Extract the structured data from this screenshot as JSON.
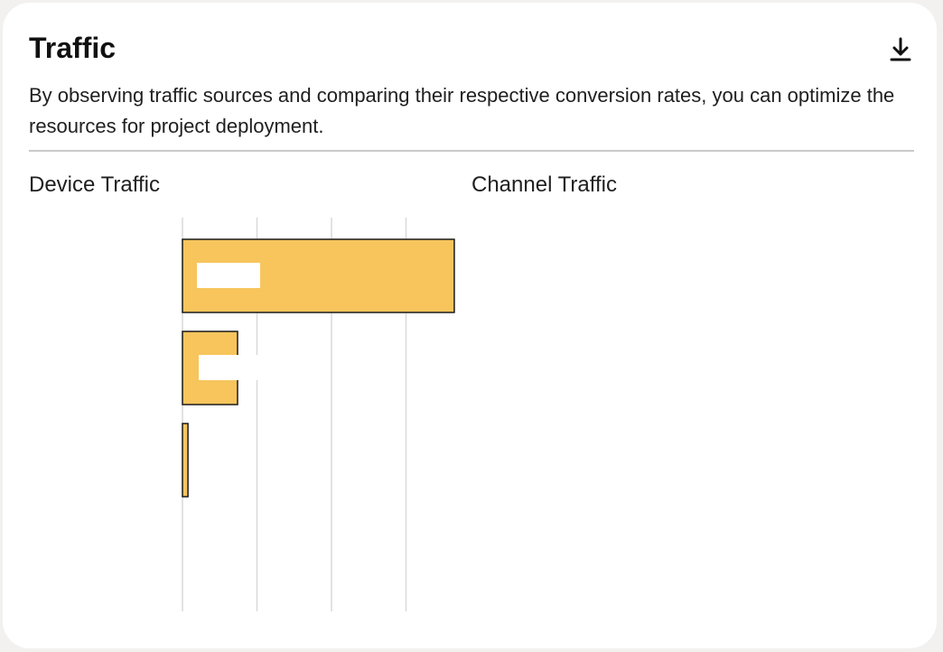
{
  "card": {
    "title": "Traffic",
    "description": "By observing traffic sources and comparing their respective conversion rates, you can optimize the resources for project deployment.",
    "download_icon": "download-icon"
  },
  "panels": {
    "device_title": "Device Traffic",
    "channel_title": "Channel Traffic"
  },
  "chart_data": {
    "type": "bar",
    "orientation": "horizontal",
    "title": "Device Traffic",
    "categories": [
      "",
      "",
      ""
    ],
    "values": [
      74,
      15,
      1.5
    ],
    "xlim": [
      0,
      75
    ],
    "grid": true,
    "bar_color": "#f7c55c",
    "bar_stroke": "#1a1a1a",
    "gridline_color": "#d9d9d9"
  }
}
